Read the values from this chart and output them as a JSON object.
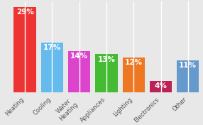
{
  "categories": [
    "Heating",
    "Cooling",
    "Water\nHeating",
    "Appliances",
    "Lighting",
    "Electronics",
    "Other"
  ],
  "values": [
    29,
    17,
    14,
    13,
    12,
    4,
    11
  ],
  "bar_colors": [
    "#ee3333",
    "#66bbee",
    "#dd44cc",
    "#44bb33",
    "#ee7722",
    "#bb2255",
    "#6699cc"
  ],
  "label_texts": [
    "29%",
    "17%",
    "14%",
    "13%",
    "12%",
    "4%",
    "11%"
  ],
  "background_color": "#e8e8e8",
  "grid_color": "#ffffff",
  "ylim": [
    0,
    31
  ],
  "label_fontsize": 7.5,
  "tick_fontsize": 6.0,
  "bar_width": 0.82
}
